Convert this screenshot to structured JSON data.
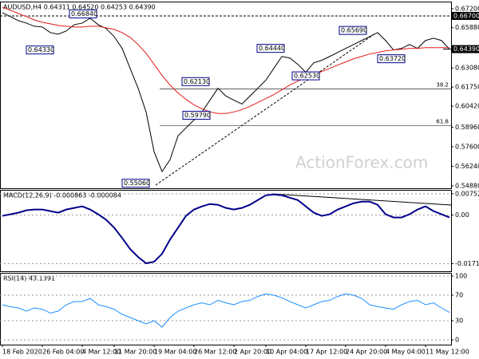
{
  "chart_data": [
    {
      "type": "line",
      "title": "AUDUSD,H4 0.64311 0.64520 0.64253 0.64390",
      "watermark": "ActionForex.com",
      "series": [
        {
          "color": "#000000",
          "values": [
            0.6692,
            0.6665,
            0.6637,
            0.662,
            0.6598,
            0.6593,
            0.6554,
            0.6543,
            0.6565,
            0.6609,
            0.662,
            0.6654,
            0.6609,
            0.6582,
            0.6526,
            0.6444,
            0.6305,
            0.6167,
            0.6002,
            0.5725,
            0.5587,
            0.567,
            0.5836,
            0.5891,
            0.5946,
            0.6002,
            0.6084,
            0.6167,
            0.6112,
            0.6084,
            0.6057,
            0.6112,
            0.6167,
            0.6223,
            0.6305,
            0.6388,
            0.6377,
            0.6333,
            0.6278,
            0.6344,
            0.6361,
            0.6388,
            0.6416,
            0.6444,
            0.6471,
            0.6499,
            0.6526,
            0.6554,
            0.6499,
            0.6433,
            0.6444,
            0.6471,
            0.6444,
            0.6499,
            0.6515,
            0.6499,
            0.6439
          ]
        },
        {
          "color": "#e31a1c",
          "values": [
            0.6731,
            0.6709,
            0.6687,
            0.6665,
            0.6642,
            0.6626,
            0.6615,
            0.6604,
            0.6598,
            0.6593,
            0.6593,
            0.6598,
            0.6598,
            0.6587,
            0.6576,
            0.6554,
            0.6521,
            0.6471,
            0.641,
            0.6333,
            0.6256,
            0.6189,
            0.6134,
            0.609,
            0.6051,
            0.6024,
            0.6002,
            0.5991,
            0.5991,
            0.6002,
            0.6018,
            0.604,
            0.6068,
            0.6095,
            0.6123,
            0.6156,
            0.6189,
            0.6217,
            0.6239,
            0.6261,
            0.6283,
            0.6305,
            0.6328,
            0.635,
            0.6372,
            0.6388,
            0.6405,
            0.6416,
            0.6427,
            0.6433,
            0.6438,
            0.6444,
            0.6444,
            0.6449,
            0.6449,
            0.6449,
            0.6449
          ]
        }
      ],
      "ylim": [
        0.5471,
        0.6764
      ],
      "yticks": [
        {
          "value": 0.672,
          "label": "0.67200"
        },
        {
          "value": 0.6588,
          "label": "0.65880"
        },
        {
          "value": 0.6308,
          "label": "0.63080"
        },
        {
          "value": 0.6175,
          "label": "0.61750"
        },
        {
          "value": 0.6042,
          "label": "0.60420"
        },
        {
          "value": 0.5896,
          "label": "0.58960"
        },
        {
          "value": 0.576,
          "label": "0.57600"
        },
        {
          "value": 0.5624,
          "label": "0.56240"
        },
        {
          "value": 0.5488,
          "label": "0.54880"
        }
      ],
      "current_price": {
        "value": 0.6439,
        "label": "0.64390"
      },
      "level_line": {
        "value": 0.667,
        "label": "0.66700"
      },
      "fib_levels": [
        {
          "value": 0.6162,
          "label": "38.2"
        },
        {
          "value": 0.5908,
          "label": "61.8"
        }
      ],
      "annotations": [
        {
          "value": 0.6684,
          "label": "0.66840"
        },
        {
          "value": 0.6433,
          "label": "0.64330"
        },
        {
          "value": 0.5506,
          "label": "0.55060"
        },
        {
          "value": 0.6213,
          "label": "0.62130"
        },
        {
          "value": 0.5979,
          "label": "0.59790"
        },
        {
          "value": 0.6444,
          "label": "0.64440"
        },
        {
          "value": 0.6253,
          "label": "0.62530"
        },
        {
          "value": 0.6569,
          "label": "0.65690"
        },
        {
          "value": 0.6372,
          "label": "0.63720"
        }
      ]
    },
    {
      "type": "line",
      "title": "MACD(12,26,9) -0.000863 -0.000084",
      "series": [
        {
          "color": "#00008b",
          "values": [
            -0.00028,
            0.00028,
            0.00084,
            0.00167,
            0.00195,
            0.00195,
            0.00139,
            0.00084,
            0.00195,
            0.00251,
            0.00307,
            0.00195,
            0.00028,
            -0.00167,
            -0.00446,
            -0.00808,
            -0.01198,
            -0.01477,
            -0.017,
            -0.01644,
            -0.01366,
            -0.00864,
            -0.00446,
            -0.00028,
            0.00195,
            0.00307,
            0.0039,
            0.00362,
            0.00251,
            0.00195,
            0.00251,
            0.00362,
            0.0053,
            0.00697,
            0.00725,
            0.00697,
            0.00613,
            0.0053,
            0.00307,
            0.00084,
            -0.00028,
            0.00028,
            0.00195,
            0.00307,
            0.00418,
            0.00474,
            0.00474,
            0.00362,
            0.00028,
            -0.00084,
            -0.00084,
            0.00028,
            0.00195,
            0.00307,
            0.00139,
            0.00028,
            -0.00084
          ]
        }
      ],
      "ylim": [
        -0.0198,
        0.0086
      ],
      "yticks": [
        {
          "value": 0.007526,
          "label": "0.007526"
        },
        {
          "value": 0,
          "label": "0.00"
        },
        {
          "value": -0.017112,
          "label": "-0.017112"
        }
      ],
      "grid": true
    },
    {
      "type": "line",
      "title": "RSI(14) 43.1391",
      "categories": [
        "18 Feb 2020",
        null,
        null,
        null,
        null,
        "26 Feb 04:00",
        null,
        null,
        null,
        null,
        "4 Mar 12:00",
        null,
        null,
        null,
        "11 Mar 20:00",
        null,
        null,
        null,
        null,
        "19 Mar 04:00",
        null,
        null,
        null,
        null,
        "26 Mar 12:00",
        null,
        null,
        null,
        null,
        "2 Apr 20:00",
        null,
        null,
        null,
        "10 Apr 04:00",
        null,
        null,
        null,
        null,
        "17 Apr 12:00",
        null,
        null,
        null,
        null,
        "24 Apr 20:00",
        null,
        null,
        null,
        null,
        "4 May 04:00",
        null,
        null,
        null,
        null,
        "11 May 12:00",
        null,
        null,
        null
      ],
      "series": [
        {
          "color": "#1e90ff",
          "values": [
            55,
            52,
            50,
            45,
            50,
            48,
            42,
            45,
            55,
            60,
            60,
            65,
            55,
            52,
            48,
            40,
            35,
            30,
            25,
            30,
            20,
            35,
            45,
            50,
            55,
            58,
            55,
            62,
            58,
            55,
            60,
            62,
            68,
            72,
            70,
            66,
            60,
            55,
            50,
            55,
            60,
            62,
            68,
            72,
            70,
            65,
            55,
            52,
            50,
            48,
            55,
            60,
            62,
            55,
            58,
            50,
            43
          ]
        }
      ],
      "ylim": [
        -7.5,
        103.75
      ],
      "yticks": [
        100,
        70,
        30,
        0
      ],
      "grid": true
    }
  ]
}
